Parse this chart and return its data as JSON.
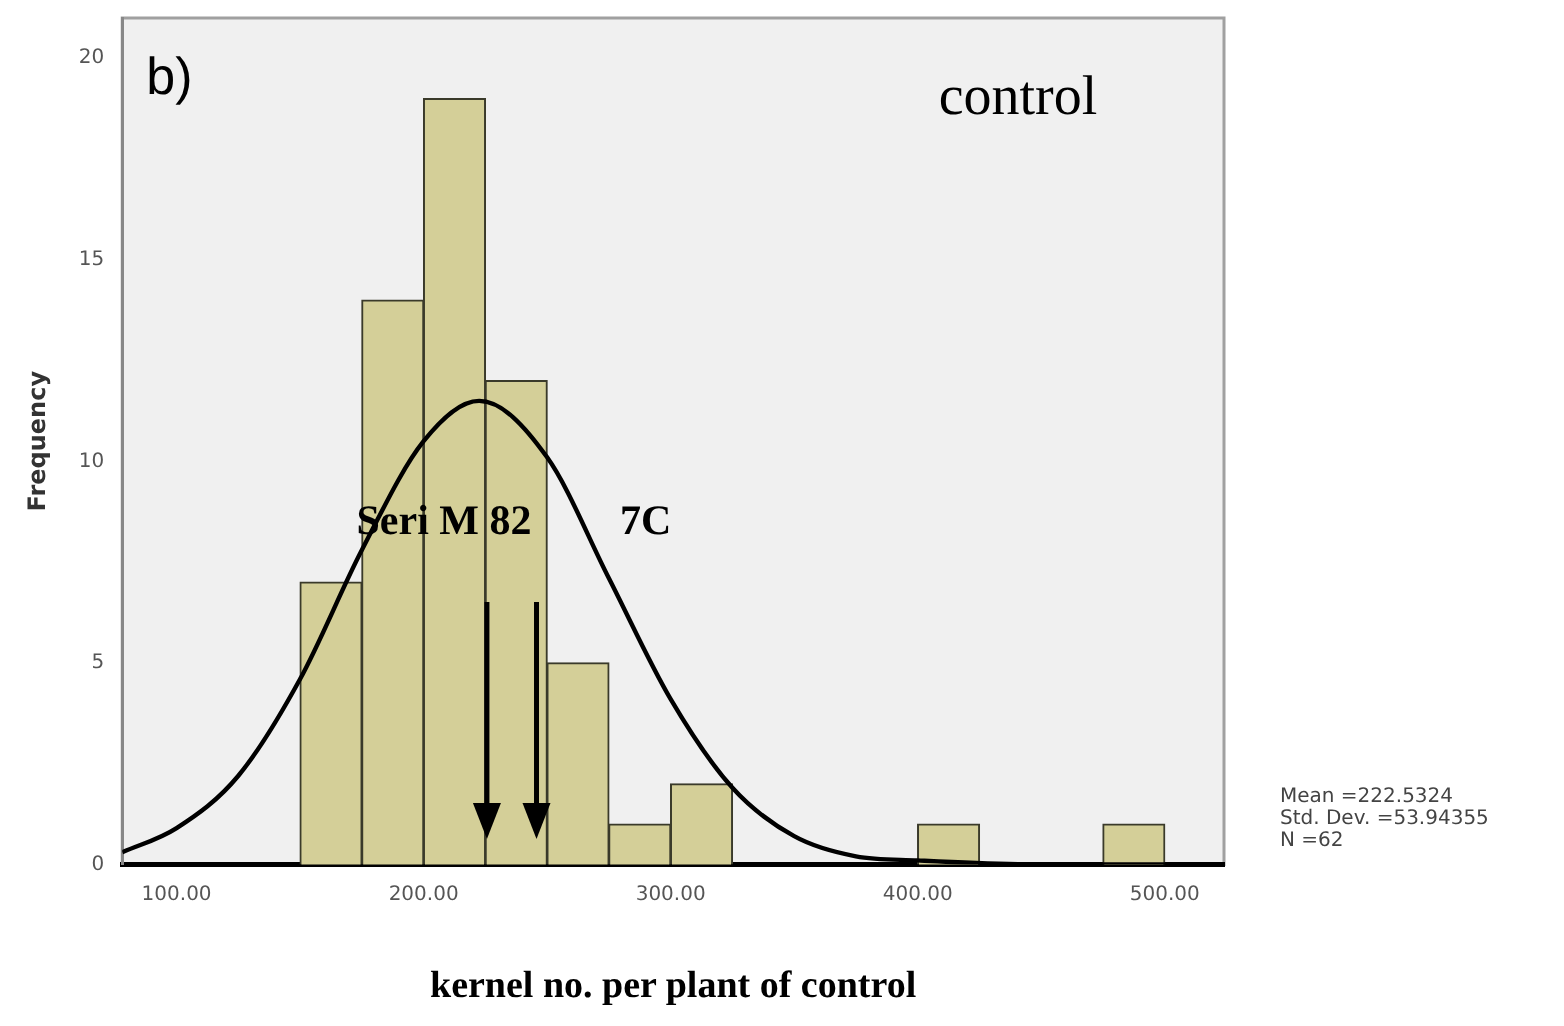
{
  "chart_data": {
    "type": "histogram",
    "xlabel": "kernel no. per plant of control",
    "ylabel": "Frequency",
    "series": [
      {
        "type": "histogram",
        "bins": [
          150,
          175,
          200,
          225,
          250,
          275,
          300,
          325,
          350,
          375,
          400,
          425,
          450,
          475,
          500
        ],
        "values": [
          7,
          14,
          19,
          12,
          5,
          1,
          2,
          0,
          0,
          0,
          1,
          0,
          0,
          1
        ],
        "color": "#d4cf98"
      },
      {
        "type": "line",
        "x": [
          78,
          100,
          125,
          150,
          175,
          200,
          222.5,
          250,
          275,
          300,
          325,
          350,
          375,
          400,
          450,
          500,
          524
        ],
        "values": [
          0.3,
          0.9,
          2.2,
          4.6,
          7.8,
          10.5,
          11.5,
          10.1,
          7.1,
          4.1,
          1.9,
          0.7,
          0.2,
          0.1,
          0,
          0,
          0
        ],
        "color": "#000000"
      }
    ],
    "xlim": [
      78,
      524
    ],
    "ylim": [
      0,
      21
    ],
    "xticks": [
      {
        "value": 100,
        "label": "100.00"
      },
      {
        "value": 200,
        "label": "200.00"
      },
      {
        "value": 300,
        "label": "300.00"
      },
      {
        "value": 400,
        "label": "400.00"
      },
      {
        "value": 500,
        "label": "500.00"
      }
    ],
    "yticks": [
      0,
      5,
      10,
      15,
      20
    ],
    "grid": false,
    "legend": false,
    "marker": "none",
    "line_style": "solid",
    "annotations": [
      "b)",
      "control",
      "Seri M 82",
      "7C",
      "Mean =222.5324",
      "Std. Dev. =53.94355",
      "N =62"
    ]
  }
}
